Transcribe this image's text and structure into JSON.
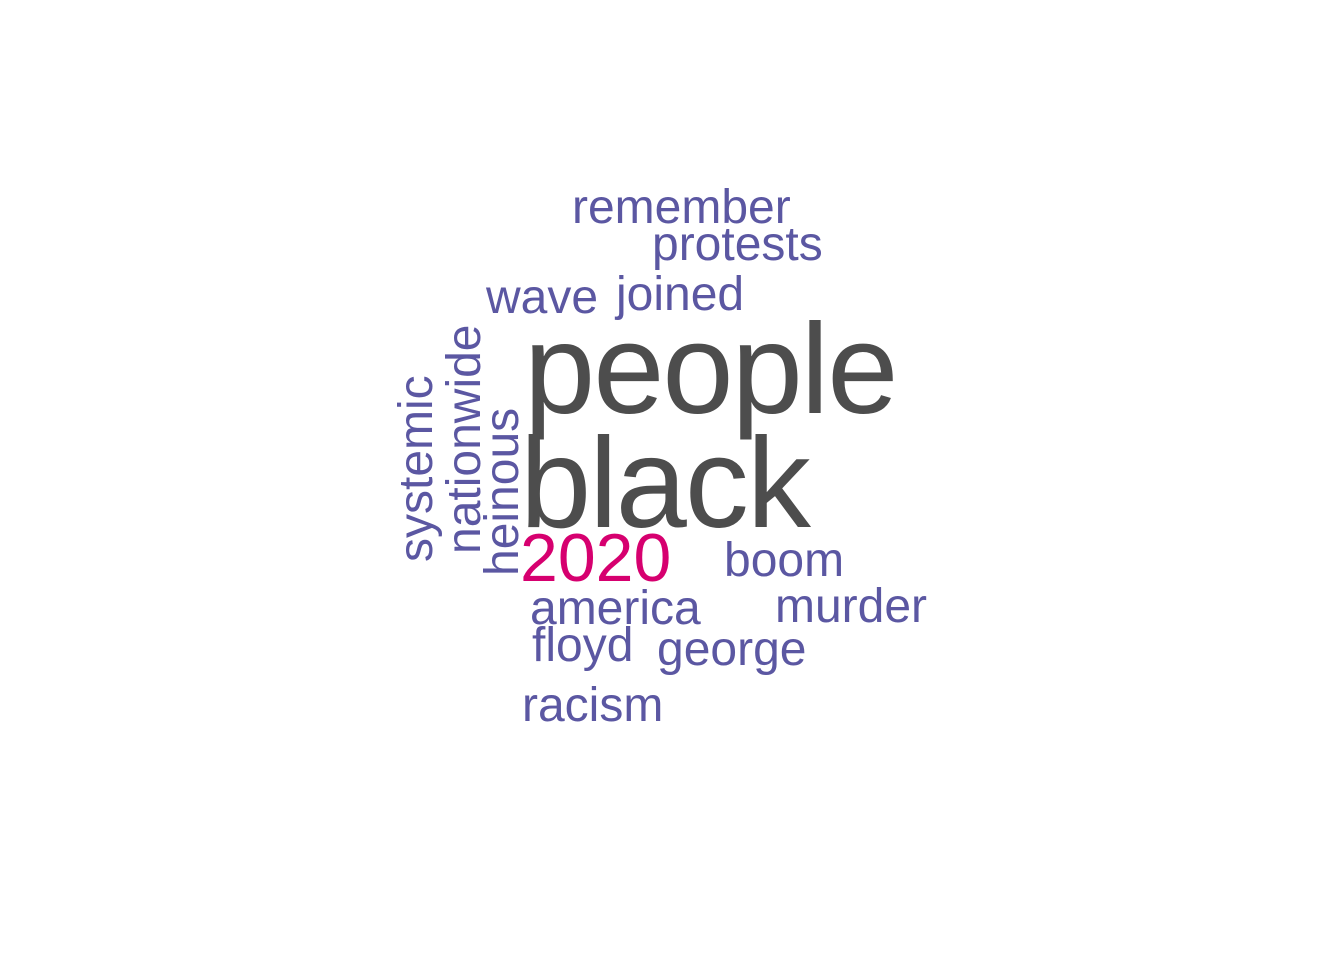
{
  "word_cloud": {
    "colors": {
      "dominant": "#4d4d4d",
      "accent": "#d6006f",
      "secondary": "#5b57a2"
    },
    "words": {
      "people": "people",
      "black": "black",
      "year": "2020",
      "remember": "remember",
      "protests": "protests",
      "wave": "wave",
      "joined": "joined",
      "systemic": "systemic",
      "nationwide": "nationwide",
      "heinous": "heinous",
      "boom": "boom",
      "america": "america",
      "murder": "murder",
      "floyd": "floyd",
      "george": "george",
      "racism": "racism"
    }
  }
}
